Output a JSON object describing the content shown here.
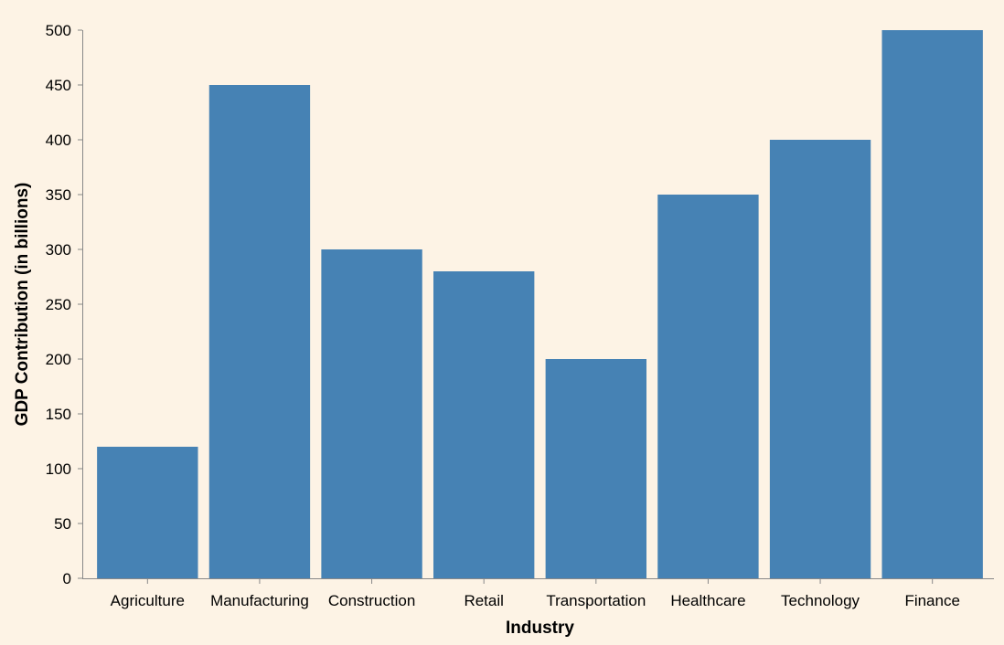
{
  "chart_data": {
    "type": "bar",
    "title": "",
    "xlabel": "Industry",
    "ylabel": "GDP Contribution (in billions)",
    "categories": [
      "Agriculture",
      "Manufacturing",
      "Construction",
      "Retail",
      "Transportation",
      "Healthcare",
      "Technology",
      "Finance"
    ],
    "values": [
      120,
      450,
      300,
      280,
      200,
      350,
      400,
      500
    ],
    "ylim": [
      0,
      500
    ],
    "yticks": [
      "0",
      "50",
      "100",
      "150",
      "200",
      "250",
      "300",
      "350",
      "400",
      "450",
      "500"
    ],
    "grid": false,
    "legend": "none",
    "colors": {
      "bar": "#4682b4",
      "background": "#fdf3e5",
      "axis": "#888888",
      "text": "#000000"
    }
  }
}
